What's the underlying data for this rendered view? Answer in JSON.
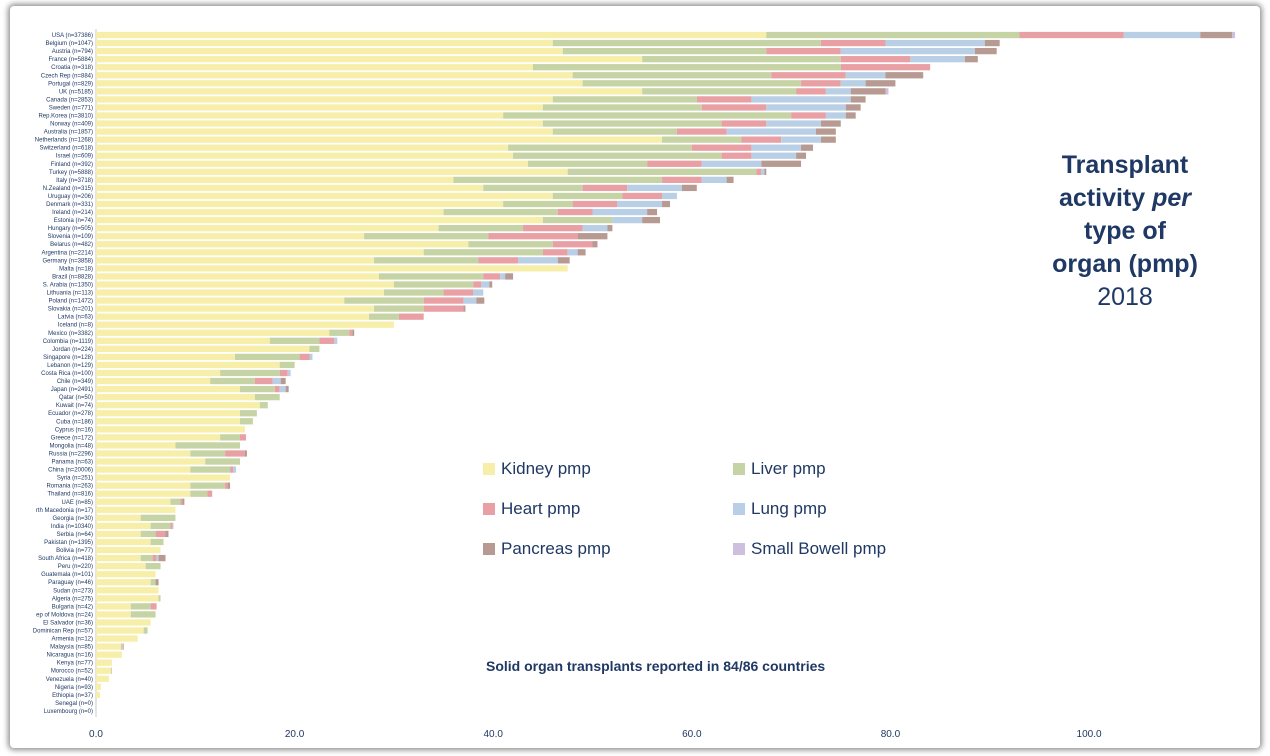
{
  "title": {
    "line1": "Transplant",
    "line2_pre": "activity ",
    "line2_em": "per",
    "line3": "type of",
    "line4": "organ (pmp)",
    "year": "2018"
  },
  "note": "Solid organ transplants reported in 84/86 countries",
  "legend": [
    {
      "key": "kidney",
      "label": "Kidney pmp",
      "color": "#f7efa9"
    },
    {
      "key": "liver",
      "label": "Liver pmp",
      "color": "#c6d3a4"
    },
    {
      "key": "heart",
      "label": "Heart pmp",
      "color": "#e9a0a5"
    },
    {
      "key": "lung",
      "label": "Lung pmp",
      "color": "#b9cfe6"
    },
    {
      "key": "pancreas",
      "label": "Pancreas pmp",
      "color": "#b79a92"
    },
    {
      "key": "bowel",
      "label": "Small Bowell pmp",
      "color": "#cdbfdd"
    }
  ],
  "chart_data": {
    "type": "bar",
    "orientation": "horizontal",
    "stacked": true,
    "xlim": [
      0,
      115
    ],
    "xticks": [
      "0.0",
      "20.0",
      "40.0",
      "60.0",
      "80.0",
      "100.0"
    ],
    "xtick_values": [
      0,
      20,
      40,
      60,
      80,
      100
    ],
    "series_order": [
      "kidney",
      "liver",
      "heart",
      "lung",
      "pancreas",
      "bowel"
    ],
    "rows": [
      {
        "label": "USA (n=37386)",
        "kidney": 67.5,
        "liver": 25.5,
        "heart": 10.5,
        "lung": 7.7,
        "pancreas": 3.2,
        "bowel": 0.3
      },
      {
        "label": "Belgium (n=1047)",
        "kidney": 46,
        "liver": 27,
        "heart": 6.5,
        "lung": 10,
        "pancreas": 1.5,
        "bowel": 0
      },
      {
        "label": "Austria (n=794)",
        "kidney": 47,
        "liver": 20.5,
        "heart": 7.5,
        "lung": 13.5,
        "pancreas": 2.2,
        "bowel": 0
      },
      {
        "label": "France (n=5884)",
        "kidney": 55,
        "liver": 20,
        "heart": 7,
        "lung": 5.5,
        "pancreas": 1.3,
        "bowel": 0
      },
      {
        "label": "Croatia (n=318)",
        "kidney": 44,
        "liver": 31,
        "heart": 9,
        "lung": 0,
        "pancreas": 0,
        "bowel": 0
      },
      {
        "label": "Czech Rep (n=884)",
        "kidney": 48,
        "liver": 20,
        "heart": 7.5,
        "lung": 4,
        "pancreas": 3.8,
        "bowel": 0
      },
      {
        "label": "Portugal (n=829)",
        "kidney": 49,
        "liver": 22,
        "heart": 4,
        "lung": 2.5,
        "pancreas": 3,
        "bowel": 0
      },
      {
        "label": "UK (n=5185)",
        "kidney": 55,
        "liver": 15.5,
        "heart": 3,
        "lung": 2.5,
        "pancreas": 3.5,
        "bowel": 0.3
      },
      {
        "label": "Canada (n=2853)",
        "kidney": 46,
        "liver": 14.5,
        "heart": 5.5,
        "lung": 10,
        "pancreas": 1.5,
        "bowel": 0
      },
      {
        "label": "Sweden (n=771)",
        "kidney": 45,
        "liver": 16,
        "heart": 6.5,
        "lung": 8,
        "pancreas": 1.5,
        "bowel": 0
      },
      {
        "label": "Rep.Korea (n=3810)",
        "kidney": 41,
        "liver": 29,
        "heart": 3.5,
        "lung": 2,
        "pancreas": 1,
        "bowel": 0
      },
      {
        "label": "Norway (n=409)",
        "kidney": 45,
        "liver": 18,
        "heart": 4.5,
        "lung": 5.5,
        "pancreas": 2,
        "bowel": 0
      },
      {
        "label": "Australia (n=1857)",
        "kidney": 46,
        "liver": 12.5,
        "heart": 5,
        "lung": 9,
        "pancreas": 2,
        "bowel": 0
      },
      {
        "label": "Netherlands (n=1268)",
        "kidney": 57,
        "liver": 8,
        "heart": 4,
        "lung": 4,
        "pancreas": 1.5,
        "bowel": 0
      },
      {
        "label": "Switzerland (n=618)",
        "kidney": 41.5,
        "liver": 18.5,
        "heart": 6,
        "lung": 5,
        "pancreas": 1.2,
        "bowel": 0
      },
      {
        "label": "Israel (n=609)",
        "kidney": 42,
        "liver": 21,
        "heart": 3,
        "lung": 4.5,
        "pancreas": 1,
        "bowel": 0
      },
      {
        "label": "Finland (n=392)",
        "kidney": 43.5,
        "liver": 12,
        "heart": 5.5,
        "lung": 6,
        "pancreas": 4,
        "bowel": 0
      },
      {
        "label": "Turkey (n=5888)",
        "kidney": 47.5,
        "liver": 19,
        "heart": 0.5,
        "lung": 0.3,
        "pancreas": 0.2,
        "bowel": 0
      },
      {
        "label": "Italy (n=3718)",
        "kidney": 36,
        "liver": 21,
        "heart": 4,
        "lung": 2.5,
        "pancreas": 0.7,
        "bowel": 0
      },
      {
        "label": "N.Zealand (n=315)",
        "kidney": 39,
        "liver": 10,
        "heart": 4.5,
        "lung": 5.5,
        "pancreas": 1.5,
        "bowel": 0
      },
      {
        "label": "Uruguay (n=206)",
        "kidney": 46,
        "liver": 7,
        "heart": 4,
        "lung": 1.5,
        "pancreas": 0,
        "bowel": 0
      },
      {
        "label": "Denmark (n=331)",
        "kidney": 41,
        "liver": 7,
        "heart": 4.5,
        "lung": 4.5,
        "pancreas": 0.8,
        "bowel": 0
      },
      {
        "label": "Ireland (n=214)",
        "kidney": 35,
        "liver": 11.5,
        "heart": 3.5,
        "lung": 5.5,
        "pancreas": 1,
        "bowel": 0
      },
      {
        "label": "Estonia (n=74)",
        "kidney": 45,
        "liver": 7,
        "heart": 0,
        "lung": 3,
        "pancreas": 1.8,
        "bowel": 0
      },
      {
        "label": "Hungary (n=505)",
        "kidney": 34.5,
        "liver": 8.5,
        "heart": 6,
        "lung": 2.5,
        "pancreas": 0.5,
        "bowel": 0
      },
      {
        "label": "Slovenia (n=109)",
        "kidney": 27,
        "liver": 12.5,
        "heart": 9,
        "lung": 0,
        "pancreas": 3,
        "bowel": 0
      },
      {
        "label": "Belarus (n=482)",
        "kidney": 37.5,
        "liver": 8.5,
        "heart": 4,
        "lung": 0,
        "pancreas": 0.5,
        "bowel": 0
      },
      {
        "label": "Argentina (n=2214)",
        "kidney": 33,
        "liver": 12,
        "heart": 2.5,
        "lung": 1,
        "pancreas": 0.8,
        "bowel": 0
      },
      {
        "label": "Germany (n=3858)",
        "kidney": 28,
        "liver": 10.5,
        "heart": 4,
        "lung": 4,
        "pancreas": 1.2,
        "bowel": 0
      },
      {
        "label": "Malta (n=18)",
        "kidney": 47.5,
        "liver": 0,
        "heart": 0,
        "lung": 0,
        "pancreas": 0,
        "bowel": 0
      },
      {
        "label": "Brazil (n=8828)",
        "kidney": 28.5,
        "liver": 10.5,
        "heart": 1.7,
        "lung": 0.5,
        "pancreas": 0.8,
        "bowel": 0
      },
      {
        "label": "S. Arabia (n=1350)",
        "kidney": 30,
        "liver": 8,
        "heart": 0.8,
        "lung": 0.8,
        "pancreas": 0.3,
        "bowel": 0
      },
      {
        "label": "Lithuania (n=113)",
        "kidney": 29,
        "liver": 6,
        "heart": 3,
        "lung": 1,
        "pancreas": 0,
        "bowel": 0
      },
      {
        "label": "Poland (n=1472)",
        "kidney": 25,
        "liver": 8,
        "heart": 4,
        "lung": 1.3,
        "pancreas": 0.8,
        "bowel": 0
      },
      {
        "label": "Slovakia (n=201)",
        "kidney": 28,
        "liver": 5,
        "heart": 4,
        "lung": 0,
        "pancreas": 0.2,
        "bowel": 0
      },
      {
        "label": "Latvia (n=63)",
        "kidney": 27.5,
        "liver": 3,
        "heart": 2.5,
        "lung": 0,
        "pancreas": 0,
        "bowel": 0
      },
      {
        "label": "Iceland (n=8)",
        "kidney": 30,
        "liver": 0,
        "heart": 0,
        "lung": 0,
        "pancreas": 0,
        "bowel": 0
      },
      {
        "label": "Mexico (n=3382)",
        "kidney": 23.5,
        "liver": 2,
        "heart": 0.3,
        "lung": 0,
        "pancreas": 0.2,
        "bowel": 0
      },
      {
        "label": "Colombia (n=1119)",
        "kidney": 17.5,
        "liver": 5,
        "heart": 1.5,
        "lung": 0.3,
        "pancreas": 0,
        "bowel": 0
      },
      {
        "label": "Jordan (n=224)",
        "kidney": 21.5,
        "liver": 1,
        "heart": 0,
        "lung": 0,
        "pancreas": 0,
        "bowel": 0
      },
      {
        "label": "Singapore (n=128)",
        "kidney": 14,
        "liver": 6.5,
        "heart": 1,
        "lung": 0.3,
        "pancreas": 0,
        "bowel": 0
      },
      {
        "label": "Lebanon (n=129)",
        "kidney": 18.5,
        "liver": 1.5,
        "heart": 0,
        "lung": 0,
        "pancreas": 0,
        "bowel": 0
      },
      {
        "label": "Costa Rica (n=100)",
        "kidney": 12.5,
        "liver": 6,
        "heart": 0.8,
        "lung": 0.3,
        "pancreas": 0,
        "bowel": 0
      },
      {
        "label": "Chile (n=349)",
        "kidney": 11.5,
        "liver": 4.5,
        "heart": 1.8,
        "lung": 0.8,
        "pancreas": 0.5,
        "bowel": 0
      },
      {
        "label": "Japan (n=2491)",
        "kidney": 14.5,
        "liver": 3.5,
        "heart": 0.5,
        "lung": 0.6,
        "pancreas": 0.3,
        "bowel": 0
      },
      {
        "label": "Qatar (n=50)",
        "kidney": 16,
        "liver": 2.5,
        "heart": 0,
        "lung": 0,
        "pancreas": 0,
        "bowel": 0
      },
      {
        "label": "Kuwait (n=74)",
        "kidney": 16.5,
        "liver": 0.8,
        "heart": 0,
        "lung": 0,
        "pancreas": 0,
        "bowel": 0
      },
      {
        "label": "Ecuador (n=278)",
        "kidney": 14.5,
        "liver": 1.7,
        "heart": 0,
        "lung": 0,
        "pancreas": 0,
        "bowel": 0
      },
      {
        "label": "Cuba (n=186)",
        "kidney": 14.5,
        "liver": 1.3,
        "heart": 0,
        "lung": 0,
        "pancreas": 0,
        "bowel": 0
      },
      {
        "label": "Cyprus (n=16)",
        "kidney": 15,
        "liver": 0,
        "heart": 0,
        "lung": 0,
        "pancreas": 0,
        "bowel": 0
      },
      {
        "label": "Greece (n=172)",
        "kidney": 12.5,
        "liver": 2,
        "heart": 0.6,
        "lung": 0,
        "pancreas": 0,
        "bowel": 0
      },
      {
        "label": "Mongolia (n=48)",
        "kidney": 8,
        "liver": 6.5,
        "heart": 0,
        "lung": 0,
        "pancreas": 0,
        "bowel": 0
      },
      {
        "label": "Russia (n=2296)",
        "kidney": 9.5,
        "liver": 3.5,
        "heart": 2,
        "lung": 0,
        "pancreas": 0.2,
        "bowel": 0
      },
      {
        "label": "Panama (n=63)",
        "kidney": 11,
        "liver": 3.5,
        "heart": 0,
        "lung": 0,
        "pancreas": 0,
        "bowel": 0
      },
      {
        "label": "China (n=20006)",
        "kidney": 9.5,
        "liver": 4,
        "heart": 0.3,
        "lung": 0.3,
        "pancreas": 0,
        "bowel": 0
      },
      {
        "label": "Syria (n=251)",
        "kidney": 13.5,
        "liver": 0,
        "heart": 0,
        "lung": 0,
        "pancreas": 0,
        "bowel": 0
      },
      {
        "label": "Romania (n=263)",
        "kidney": 9.5,
        "liver": 3.5,
        "heart": 0.3,
        "lung": 0,
        "pancreas": 0.2,
        "bowel": 0
      },
      {
        "label": "Thailand (n=816)",
        "kidney": 9.5,
        "liver": 1.7,
        "heart": 0.5,
        "lung": 0,
        "pancreas": 0,
        "bowel": 0
      },
      {
        "label": "UAE (n=85)",
        "kidney": 7.5,
        "liver": 1,
        "heart": 0.2,
        "lung": 0,
        "pancreas": 0.2,
        "bowel": 0
      },
      {
        "label": "rth Macedonia (n=17)",
        "kidney": 8,
        "liver": 0,
        "heart": 0,
        "lung": 0,
        "pancreas": 0,
        "bowel": 0
      },
      {
        "label": "Georgia (n=30)",
        "kidney": 4.5,
        "liver": 3.5,
        "heart": 0,
        "lung": 0,
        "pancreas": 0,
        "bowel": 0
      },
      {
        "label": "India (n=10340)",
        "kidney": 5.5,
        "liver": 2,
        "heart": 0.2,
        "lung": 0.1,
        "pancreas": 0,
        "bowel": 0
      },
      {
        "label": "Serbia (n=64)",
        "kidney": 4.5,
        "liver": 1.5,
        "heart": 1,
        "lung": 0,
        "pancreas": 0.3,
        "bowel": 0
      },
      {
        "label": "Pakistan (n=1395)",
        "kidney": 5.5,
        "liver": 1.3,
        "heart": 0,
        "lung": 0,
        "pancreas": 0,
        "bowel": 0
      },
      {
        "label": "Bolivia (n=77)",
        "kidney": 6.5,
        "liver": 0,
        "heart": 0,
        "lung": 0,
        "pancreas": 0,
        "bowel": 0
      },
      {
        "label": "South Africa (n=418)",
        "kidney": 4.5,
        "liver": 1.2,
        "heart": 0.4,
        "lung": 0.2,
        "pancreas": 0.7,
        "bowel": 0
      },
      {
        "label": "Peru (n=220)",
        "kidney": 5,
        "liver": 1.5,
        "heart": 0,
        "lung": 0,
        "pancreas": 0,
        "bowel": 0
      },
      {
        "label": "Guatemala (n=101)",
        "kidney": 6,
        "liver": 0,
        "heart": 0,
        "lung": 0,
        "pancreas": 0,
        "bowel": 0
      },
      {
        "label": "Paraguay (n=46)",
        "kidney": 5.5,
        "liver": 0.5,
        "heart": 0,
        "lung": 0,
        "pancreas": 0.3,
        "bowel": 0
      },
      {
        "label": "Sudan (n=273)",
        "kidney": 6.3,
        "liver": 0,
        "heart": 0,
        "lung": 0,
        "pancreas": 0,
        "bowel": 0
      },
      {
        "label": "Algeria (n=275)",
        "kidney": 6.3,
        "liver": 0.2,
        "heart": 0,
        "lung": 0,
        "pancreas": 0,
        "bowel": 0
      },
      {
        "label": "Bulgaria (n=42)",
        "kidney": 3.5,
        "liver": 2,
        "heart": 0.6,
        "lung": 0,
        "pancreas": 0,
        "bowel": 0
      },
      {
        "label": "ep of Moldova (n=24)",
        "kidney": 3.5,
        "liver": 2.5,
        "heart": 0,
        "lung": 0,
        "pancreas": 0,
        "bowel": 0
      },
      {
        "label": "El Salvador (n=36)",
        "kidney": 5.5,
        "liver": 0,
        "heart": 0,
        "lung": 0,
        "pancreas": 0,
        "bowel": 0
      },
      {
        "label": "Dominican Rep (n=57)",
        "kidney": 4.8,
        "liver": 0.4,
        "heart": 0,
        "lung": 0,
        "pancreas": 0,
        "bowel": 0
      },
      {
        "label": "Armenia (n=12)",
        "kidney": 4.2,
        "liver": 0,
        "heart": 0,
        "lung": 0,
        "pancreas": 0,
        "bowel": 0
      },
      {
        "label": "Malaysia (n=85)",
        "kidney": 2.5,
        "liver": 0.2,
        "heart": 0.1,
        "lung": 0,
        "pancreas": 0,
        "bowel": 0
      },
      {
        "label": "Nicaragua (n=16)",
        "kidney": 2.6,
        "liver": 0,
        "heart": 0,
        "lung": 0,
        "pancreas": 0,
        "bowel": 0
      },
      {
        "label": "Kenya (n=77)",
        "kidney": 1.6,
        "liver": 0,
        "heart": 0,
        "lung": 0,
        "pancreas": 0,
        "bowel": 0
      },
      {
        "label": "Morocco (n=52)",
        "kidney": 1.5,
        "liver": 0.1,
        "heart": 0,
        "lung": 0,
        "pancreas": 0,
        "bowel": 0
      },
      {
        "label": "Venezuela (n=40)",
        "kidney": 1.3,
        "liver": 0,
        "heart": 0,
        "lung": 0,
        "pancreas": 0,
        "bowel": 0
      },
      {
        "label": "Nigeria (n=93)",
        "kidney": 0.5,
        "liver": 0,
        "heart": 0,
        "lung": 0,
        "pancreas": 0,
        "bowel": 0
      },
      {
        "label": "Ethiopia (n=37)",
        "kidney": 0.4,
        "liver": 0,
        "heart": 0,
        "lung": 0,
        "pancreas": 0,
        "bowel": 0
      },
      {
        "label": "Senegal (n=0)",
        "kidney": 0,
        "liver": 0,
        "heart": 0,
        "lung": 0,
        "pancreas": 0,
        "bowel": 0
      },
      {
        "label": "Luxembourg (n=0)",
        "kidney": 0,
        "liver": 0,
        "heart": 0,
        "lung": 0,
        "pancreas": 0,
        "bowel": 0
      }
    ]
  }
}
